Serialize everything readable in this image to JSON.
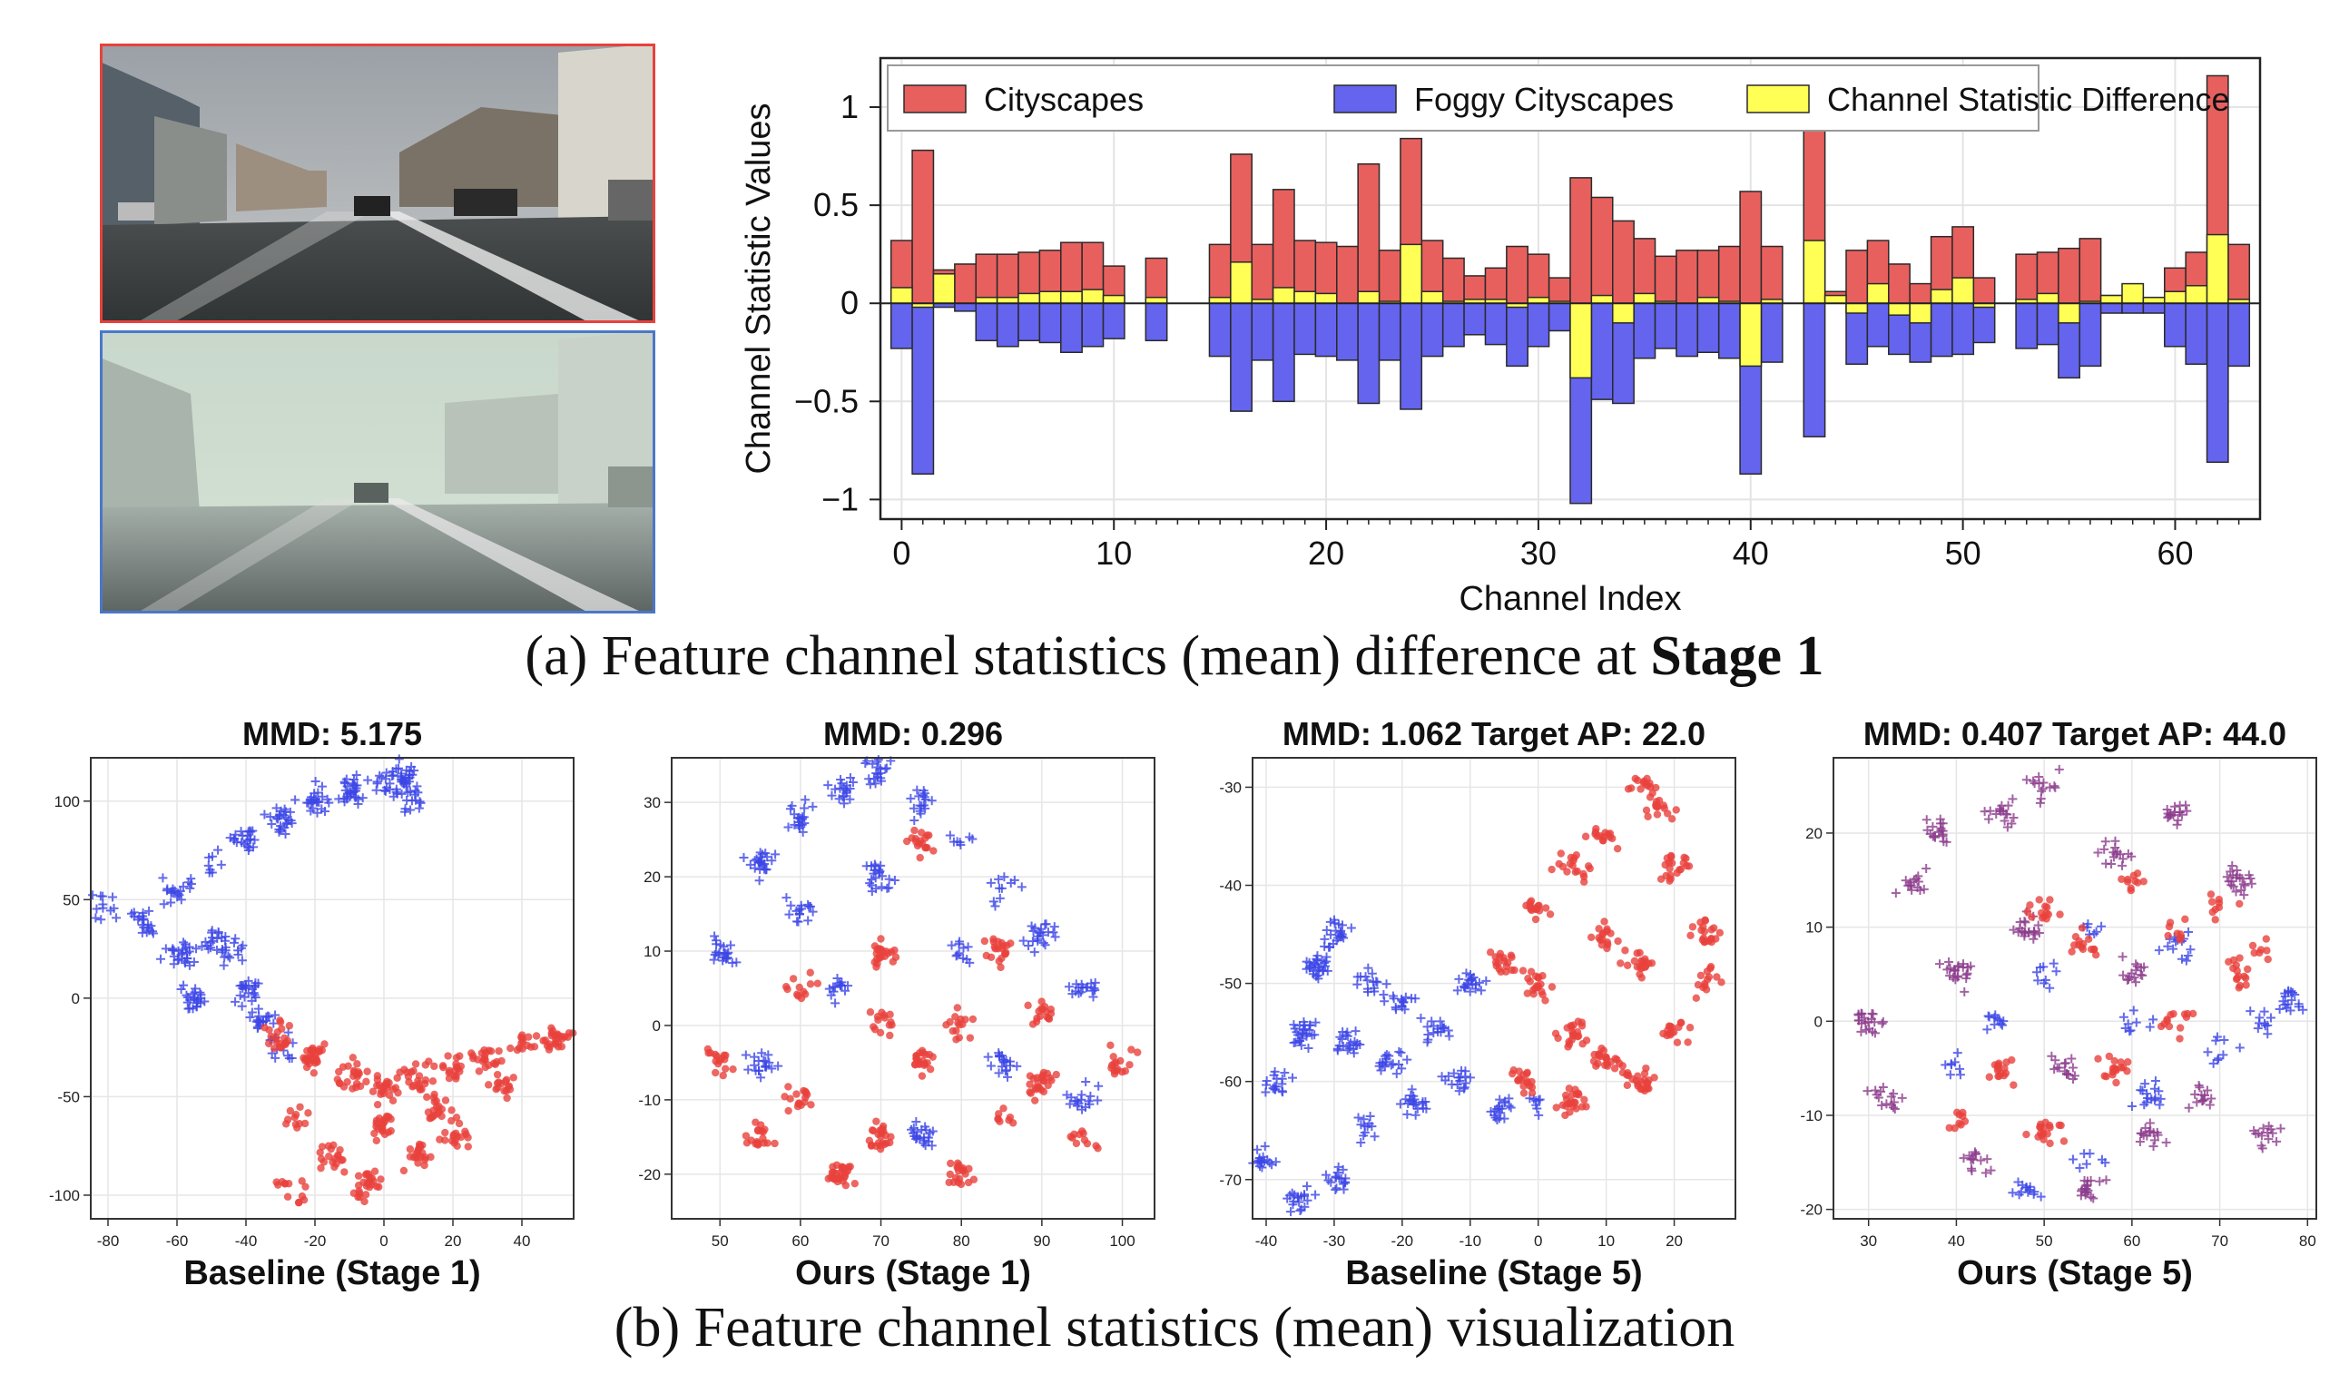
{
  "panel_a": {
    "caption_prefix": "(a) Feature channel statistics (mean) difference at ",
    "caption_bold": "Stage 1",
    "photo_top_border": "#e8413c",
    "photo_bottom_border": "#4a78c8"
  },
  "panel_b": {
    "caption": "(b) Feature channel statistics (mean) visualization"
  },
  "colors": {
    "cityscapes": "#e8605e",
    "foggy": "#6464ef",
    "difference": "#ffff55",
    "scatter_red": "#e8413c",
    "scatter_blue": "#3c46e6",
    "scatter_purple": "#8c3c8c"
  },
  "chart_data": [
    {
      "type": "bar",
      "xlabel": "Channel Index",
      "ylabel": "Channel Statistic Values",
      "xlim": [
        -1,
        64
      ],
      "ylim": [
        -1.1,
        1.25
      ],
      "xticks": [
        0,
        10,
        20,
        30,
        40,
        50,
        60
      ],
      "yticks": [
        1,
        0.5,
        0,
        -0.5,
        -1
      ],
      "ytick_labels": [
        "1",
        "0.5",
        "0",
        "−0.5",
        "−1"
      ],
      "grid": true,
      "legend_position": "top",
      "x": [
        0,
        1,
        2,
        3,
        4,
        5,
        6,
        7,
        8,
        9,
        10,
        11,
        12,
        13,
        14,
        15,
        16,
        17,
        18,
        19,
        20,
        21,
        22,
        23,
        24,
        25,
        26,
        27,
        28,
        29,
        30,
        31,
        32,
        33,
        34,
        35,
        36,
        37,
        38,
        39,
        40,
        41,
        42,
        43,
        44,
        45,
        46,
        47,
        48,
        49,
        50,
        51,
        52,
        53,
        54,
        55,
        56,
        57,
        58,
        59,
        60,
        61,
        62,
        63
      ],
      "series": [
        {
          "name": "Cityscapes",
          "values": [
            0.32,
            0.78,
            0.17,
            0.2,
            0.25,
            0.25,
            0.26,
            0.27,
            0.31,
            0.31,
            0.19,
            0.0,
            0.23,
            0.0,
            0.0,
            0.3,
            0.76,
            0.3,
            0.58,
            0.32,
            0.31,
            0.29,
            0.71,
            0.27,
            0.84,
            0.32,
            0.23,
            0.14,
            0.18,
            0.29,
            0.25,
            0.13,
            0.64,
            0.54,
            0.42,
            0.33,
            0.24,
            0.27,
            0.27,
            0.29,
            0.57,
            0.29,
            0.0,
            1.0,
            0.06,
            0.27,
            0.32,
            0.2,
            0.1,
            0.34,
            0.39,
            0.13,
            0.0,
            0.25,
            0.26,
            0.28,
            0.33,
            0.04,
            0.02,
            0.03,
            0.18,
            0.26,
            1.16,
            0.3
          ]
        },
        {
          "name": "Foggy Cityscapes",
          "values": [
            -0.23,
            -0.87,
            -0.02,
            -0.04,
            -0.19,
            -0.22,
            -0.19,
            -0.2,
            -0.25,
            -0.22,
            -0.18,
            -0.0,
            -0.19,
            -0.0,
            -0.0,
            -0.27,
            -0.55,
            -0.29,
            -0.5,
            -0.26,
            -0.27,
            -0.29,
            -0.51,
            -0.29,
            -0.54,
            -0.27,
            -0.22,
            -0.16,
            -0.21,
            -0.32,
            -0.22,
            -0.14,
            -1.02,
            -0.49,
            -0.51,
            -0.28,
            -0.23,
            -0.27,
            -0.25,
            -0.28,
            -0.87,
            -0.3,
            -0.0,
            -0.68,
            -0.0,
            -0.31,
            -0.22,
            -0.26,
            -0.3,
            -0.27,
            -0.26,
            -0.2,
            -0.0,
            -0.23,
            -0.21,
            -0.38,
            -0.32,
            -0.05,
            -0.05,
            -0.05,
            -0.22,
            -0.31,
            -0.81,
            -0.32
          ]
        },
        {
          "name": "Channel Statistic Difference",
          "values": [
            0.08,
            -0.02,
            0.15,
            0.0,
            0.03,
            0.03,
            0.05,
            0.06,
            0.06,
            0.07,
            0.04,
            0.0,
            0.03,
            0.0,
            0.0,
            0.03,
            0.21,
            0.02,
            0.08,
            0.06,
            0.05,
            0.0,
            0.06,
            0.01,
            0.3,
            0.06,
            0.01,
            0.02,
            0.02,
            -0.02,
            0.03,
            0.01,
            -0.38,
            0.04,
            -0.1,
            0.05,
            0.01,
            0.0,
            0.03,
            0.01,
            -0.32,
            0.02,
            0.0,
            0.32,
            0.04,
            -0.05,
            0.1,
            -0.06,
            -0.1,
            0.07,
            0.13,
            -0.02,
            0.0,
            0.02,
            0.05,
            -0.1,
            0.01,
            0.04,
            0.1,
            0.03,
            0.06,
            0.09,
            0.35,
            0.02
          ]
        }
      ]
    },
    {
      "type": "scatter",
      "title": "MMD: 5.175",
      "xlabel": "Baseline (Stage 1)",
      "xlim": [
        -85,
        55
      ],
      "ylim": [
        -112,
        122
      ],
      "xticks": [
        -80,
        -60,
        -40,
        -20,
        0,
        20,
        40
      ],
      "yticks": [
        100,
        50,
        0,
        -50,
        -100
      ],
      "grid": true,
      "clusters": [
        {
          "marker": "plus",
          "color": "blue",
          "count": 360,
          "points": [
            [
              -80,
              45
            ],
            [
              -70,
              38
            ],
            [
              -60,
              55
            ],
            [
              -50,
              70
            ],
            [
              -40,
              80
            ],
            [
              -30,
              90
            ],
            [
              -20,
              100
            ],
            [
              -10,
              105
            ],
            [
              0,
              110
            ],
            [
              5,
              112
            ],
            [
              8,
              100
            ],
            [
              -45,
              25
            ],
            [
              -40,
              5
            ],
            [
              -35,
              -10
            ],
            [
              -30,
              -25
            ],
            [
              -50,
              30
            ],
            [
              -60,
              20
            ],
            [
              -55,
              0
            ]
          ]
        },
        {
          "marker": "dot",
          "color": "red",
          "count": 360,
          "points": [
            [
              -30,
              -20
            ],
            [
              -20,
              -30
            ],
            [
              -10,
              -40
            ],
            [
              0,
              -45
            ],
            [
              10,
              -40
            ],
            [
              20,
              -35
            ],
            [
              30,
              -30
            ],
            [
              40,
              -25
            ],
            [
              50,
              -20
            ],
            [
              -25,
              -60
            ],
            [
              -15,
              -80
            ],
            [
              -5,
              -95
            ],
            [
              10,
              -80
            ],
            [
              20,
              -70
            ],
            [
              -28,
              -95
            ],
            [
              0,
              -65
            ],
            [
              35,
              -45
            ],
            [
              15,
              -55
            ]
          ]
        }
      ]
    },
    {
      "type": "scatter",
      "title": "MMD: 0.296",
      "xlabel": "Ours (Stage 1)",
      "xlim": [
        44,
        104
      ],
      "ylim": [
        -26,
        36
      ],
      "xticks": [
        50,
        60,
        70,
        80,
        90,
        100
      ],
      "yticks": [
        30,
        20,
        10,
        0,
        -10,
        -20
      ],
      "grid": true,
      "clusters": [
        {
          "marker": "plus",
          "color": "blue",
          "count": 320,
          "points": [
            [
              50,
              10
            ],
            [
              55,
              22
            ],
            [
              60,
              28
            ],
            [
              65,
              32
            ],
            [
              70,
              34
            ],
            [
              75,
              30
            ],
            [
              80,
              25
            ],
            [
              85,
              18
            ],
            [
              90,
              12
            ],
            [
              95,
              5
            ],
            [
              60,
              15
            ],
            [
              70,
              20
            ],
            [
              80,
              10
            ],
            [
              65,
              5
            ],
            [
              55,
              -5
            ],
            [
              75,
              -15
            ],
            [
              85,
              -5
            ],
            [
              95,
              -10
            ]
          ]
        },
        {
          "marker": "dot",
          "color": "red",
          "count": 320,
          "points": [
            [
              50,
              -5
            ],
            [
              55,
              -15
            ],
            [
              60,
              -10
            ],
            [
              65,
              -20
            ],
            [
              70,
              -15
            ],
            [
              75,
              -5
            ],
            [
              80,
              -20
            ],
            [
              85,
              -12
            ],
            [
              90,
              -8
            ],
            [
              95,
              -15
            ],
            [
              100,
              -5
            ],
            [
              60,
              5
            ],
            [
              70,
              0
            ],
            [
              80,
              0
            ],
            [
              90,
              2
            ],
            [
              75,
              25
            ],
            [
              70,
              10
            ],
            [
              85,
              10
            ]
          ]
        }
      ]
    },
    {
      "type": "scatter",
      "title": "MMD: 1.062  Target AP: 22.0",
      "xlabel": "Baseline (Stage 5)",
      "xlim": [
        -42,
        29
      ],
      "ylim": [
        -74,
        -27
      ],
      "xticks": [
        -40,
        -30,
        -20,
        -10,
        0,
        10,
        20
      ],
      "yticks": [
        -30,
        -40,
        -50,
        -60,
        -70
      ],
      "grid": true,
      "clusters": [
        {
          "marker": "plus",
          "color": "blue",
          "count": 330,
          "points": [
            [
              -40,
              -68
            ],
            [
              -38,
              -60
            ],
            [
              -35,
              -55
            ],
            [
              -32,
              -48
            ],
            [
              -30,
              -45
            ],
            [
              -25,
              -50
            ],
            [
              -20,
              -52
            ],
            [
              -15,
              -55
            ],
            [
              -12,
              -60
            ],
            [
              -18,
              -62
            ],
            [
              -25,
              -65
            ],
            [
              -30,
              -70
            ],
            [
              -35,
              -72
            ],
            [
              -22,
              -58
            ],
            [
              -28,
              -56
            ],
            [
              -10,
              -50
            ],
            [
              -5,
              -63
            ],
            [
              0,
              -62
            ]
          ]
        },
        {
          "marker": "dot",
          "color": "red",
          "count": 330,
          "points": [
            [
              0,
              -42
            ],
            [
              5,
              -38
            ],
            [
              10,
              -35
            ],
            [
              15,
              -30
            ],
            [
              18,
              -32
            ],
            [
              20,
              -38
            ],
            [
              25,
              -45
            ],
            [
              25,
              -50
            ],
            [
              20,
              -55
            ],
            [
              15,
              -60
            ],
            [
              10,
              -58
            ],
            [
              5,
              -55
            ],
            [
              0,
              -50
            ],
            [
              -5,
              -48
            ],
            [
              10,
              -45
            ],
            [
              15,
              -48
            ],
            [
              5,
              -62
            ],
            [
              -2,
              -60
            ]
          ]
        }
      ]
    },
    {
      "type": "scatter",
      "title": "MMD: 0.407  Target AP: 44.0",
      "xlabel": "Ours (Stage 5)",
      "xlim": [
        26,
        81
      ],
      "ylim": [
        -21,
        28
      ],
      "xticks": [
        30,
        40,
        50,
        60,
        70,
        80
      ],
      "yticks": [
        20,
        10,
        0,
        -10,
        -20
      ],
      "grid": true,
      "clusters": [
        {
          "marker": "plus",
          "color": "purple",
          "count": 300,
          "points": [
            [
              30,
              0
            ],
            [
              32,
              -8
            ],
            [
              35,
              15
            ],
            [
              38,
              20
            ],
            [
              40,
              5
            ],
            [
              42,
              -15
            ],
            [
              45,
              22
            ],
            [
              48,
              10
            ],
            [
              50,
              25
            ],
            [
              52,
              -5
            ],
            [
              55,
              -18
            ],
            [
              58,
              18
            ],
            [
              60,
              5
            ],
            [
              62,
              -12
            ],
            [
              65,
              22
            ],
            [
              68,
              -8
            ],
            [
              72,
              15
            ],
            [
              75,
              -12
            ]
          ]
        },
        {
          "marker": "plus",
          "color": "blue",
          "count": 130,
          "points": [
            [
              40,
              -5
            ],
            [
              50,
              5
            ],
            [
              55,
              10
            ],
            [
              60,
              0
            ],
            [
              65,
              8
            ],
            [
              70,
              -3
            ],
            [
              75,
              0
            ],
            [
              78,
              2
            ],
            [
              55,
              -15
            ],
            [
              48,
              -18
            ],
            [
              62,
              -8
            ],
            [
              45,
              0
            ]
          ]
        },
        {
          "marker": "dot",
          "color": "red",
          "count": 150,
          "points": [
            [
              50,
              12
            ],
            [
              55,
              8
            ],
            [
              60,
              15
            ],
            [
              65,
              10
            ],
            [
              70,
              12
            ],
            [
              75,
              8
            ],
            [
              45,
              -5
            ],
            [
              50,
              -12
            ],
            [
              58,
              -5
            ],
            [
              65,
              0
            ],
            [
              72,
              5
            ],
            [
              40,
              -10
            ]
          ]
        }
      ]
    }
  ]
}
